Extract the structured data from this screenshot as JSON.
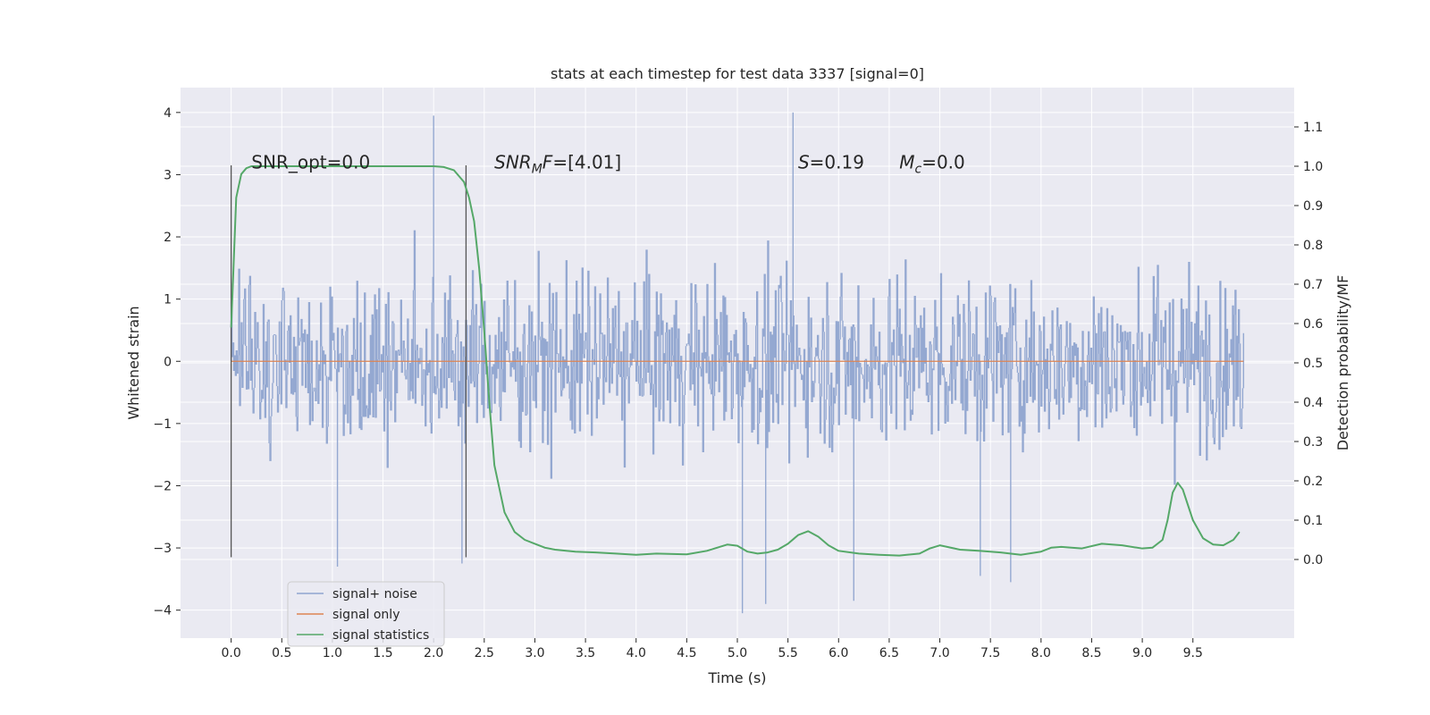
{
  "chart_data": {
    "type": "line",
    "title": "stats at each timestep for test data 3337 [signal=0]",
    "xlabel": "Time (s)",
    "ylabel_left": "Whitened strain",
    "ylabel_right": "Detection probability/MF",
    "xlim": [
      -0.5,
      10.5
    ],
    "ylim_left": [
      -4.45,
      4.4
    ],
    "ylim_right": [
      -0.2,
      1.2
    ],
    "x_ticks": [
      0.0,
      0.5,
      1.0,
      1.5,
      2.0,
      2.5,
      3.0,
      3.5,
      4.0,
      4.5,
      5.0,
      5.5,
      6.0,
      6.5,
      7.0,
      7.5,
      8.0,
      8.5,
      9.0,
      9.5
    ],
    "x_tick_labels": [
      "0.0",
      "0.5",
      "1.0",
      "1.5",
      "2.0",
      "2.5",
      "3.0",
      "3.5",
      "4.0",
      "4.5",
      "5.0",
      "5.5",
      "6.0",
      "6.5",
      "7.0",
      "7.5",
      "8.0",
      "8.5",
      "9.0",
      "9.5"
    ],
    "y_left_ticks": [
      -4,
      -3,
      -2,
      -1,
      0,
      1,
      2,
      3,
      4
    ],
    "y_left_tick_labels": [
      "−4",
      "−3",
      "−2",
      "−1",
      "0",
      "1",
      "2",
      "3",
      "4"
    ],
    "y_right_ticks": [
      0.0,
      0.1,
      0.2,
      0.3,
      0.4,
      0.5,
      0.6,
      0.7,
      0.8,
      0.9,
      1.0,
      1.1
    ],
    "y_right_tick_labels": [
      "0.0",
      "0.1",
      "0.2",
      "0.3",
      "0.4",
      "0.5",
      "0.6",
      "0.7",
      "0.8",
      "0.9",
      "1.0",
      "1.1"
    ],
    "grid": true,
    "legend_position": "lower-left",
    "annotations": [
      {
        "text": "SNR_opt=0.0",
        "x": 0.2,
        "y": 3.1
      },
      {
        "text": "SNR_MF=[4.01]",
        "x": 2.6,
        "y": 3.1
      },
      {
        "text": "S=0.19",
        "x": 5.6,
        "y": 3.1
      },
      {
        "text": "M_c=0.0",
        "x": 6.6,
        "y": 3.1
      }
    ],
    "markers": [
      {
        "x": 0.0,
        "y_range": [
          -3.15,
          3.15
        ]
      },
      {
        "x": 2.32,
        "y_range": [
          -3.15,
          3.15
        ]
      }
    ],
    "series": [
      {
        "name": "signal+ noise",
        "color": "#8fa4cf",
        "axis": "left",
        "x_range": [
          0.0,
          10.0
        ],
        "envelope": {
          "dense_band": [
            -1.2,
            1.2
          ],
          "typical_peaks": [
            -2.5,
            2.5
          ],
          "max": 4.0,
          "min": -4.1
        },
        "notable_spikes": [
          {
            "x": 2.0,
            "y": 3.95
          },
          {
            "x": 5.55,
            "y": 4.0
          },
          {
            "x": 5.05,
            "y": -4.05
          },
          {
            "x": 5.28,
            "y": -3.9
          },
          {
            "x": 6.15,
            "y": -3.85
          },
          {
            "x": 1.05,
            "y": -3.3
          },
          {
            "x": 2.28,
            "y": -3.25
          },
          {
            "x": 7.7,
            "y": -3.55
          },
          {
            "x": 7.4,
            "y": -3.45
          }
        ]
      },
      {
        "name": "signal only",
        "color": "#dd8452",
        "axis": "left",
        "x": [
          0.0,
          10.0
        ],
        "values": [
          0.0,
          0.0
        ]
      },
      {
        "name": "signal statistics",
        "color": "#55a868",
        "axis": "right",
        "x": [
          0.0,
          0.05,
          0.1,
          0.15,
          0.2,
          0.3,
          0.5,
          1.0,
          1.5,
          1.8,
          2.0,
          2.1,
          2.2,
          2.3,
          2.35,
          2.4,
          2.45,
          2.5,
          2.55,
          2.6,
          2.7,
          2.8,
          2.9,
          3.0,
          3.1,
          3.2,
          3.4,
          3.6,
          3.8,
          4.0,
          4.2,
          4.5,
          4.7,
          4.9,
          5.0,
          5.1,
          5.2,
          5.3,
          5.4,
          5.5,
          5.6,
          5.7,
          5.8,
          5.9,
          6.0,
          6.2,
          6.4,
          6.6,
          6.8,
          6.9,
          7.0,
          7.2,
          7.4,
          7.6,
          7.8,
          8.0,
          8.1,
          8.2,
          8.4,
          8.6,
          8.8,
          9.0,
          9.1,
          9.2,
          9.25,
          9.3,
          9.35,
          9.4,
          9.5,
          9.6,
          9.7,
          9.8,
          9.9,
          9.96
        ],
        "values": [
          0.59,
          0.92,
          0.98,
          0.995,
          1.0,
          1.0,
          1.0,
          1.0,
          1.0,
          1.0,
          1.0,
          0.998,
          0.99,
          0.96,
          0.92,
          0.86,
          0.74,
          0.58,
          0.4,
          0.24,
          0.12,
          0.07,
          0.05,
          0.04,
          0.03,
          0.025,
          0.02,
          0.018,
          0.015,
          0.012,
          0.015,
          0.013,
          0.022,
          0.038,
          0.035,
          0.02,
          0.015,
          0.018,
          0.025,
          0.04,
          0.062,
          0.072,
          0.058,
          0.036,
          0.022,
          0.015,
          0.012,
          0.01,
          0.015,
          0.028,
          0.036,
          0.025,
          0.022,
          0.018,
          0.012,
          0.02,
          0.03,
          0.032,
          0.028,
          0.04,
          0.036,
          0.028,
          0.03,
          0.05,
          0.1,
          0.17,
          0.195,
          0.178,
          0.1,
          0.054,
          0.038,
          0.036,
          0.05,
          0.07
        ]
      }
    ]
  }
}
